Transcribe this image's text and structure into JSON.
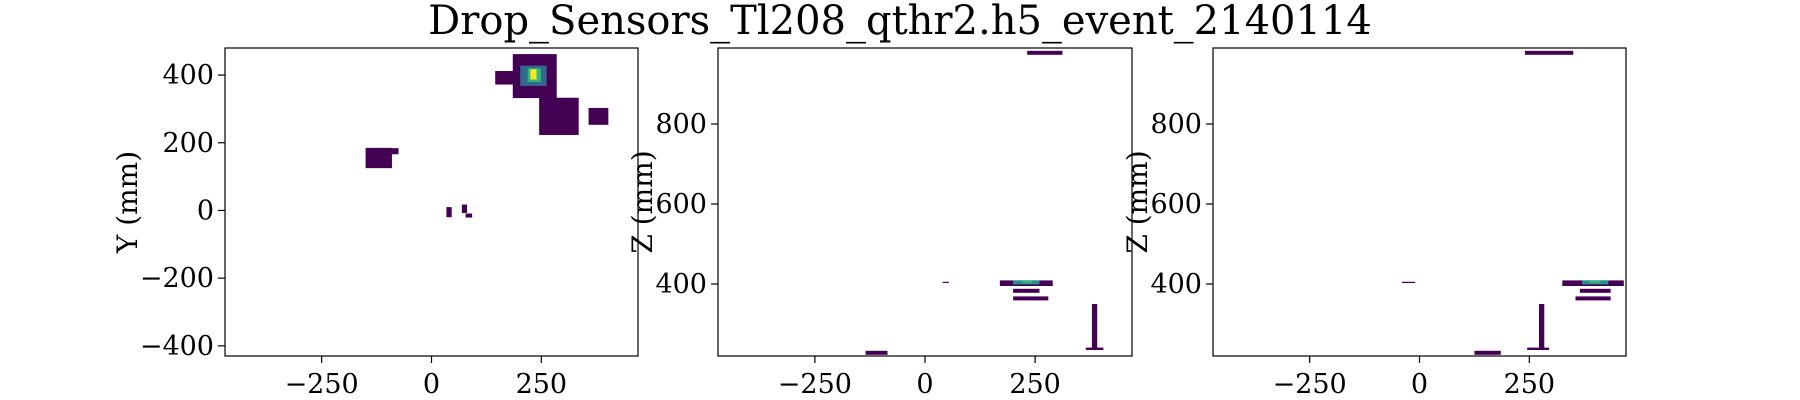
{
  "figure": {
    "title": "Drop_Sensors_Tl208_qthr2.h5_event_2140114"
  },
  "colormap": [
    "#440154",
    "#31688e",
    "#21918c",
    "#35b779",
    "#fde725"
  ],
  "chart_data": [
    {
      "type": "heatmap",
      "panel": "xy",
      "xlabel": "",
      "ylabel": "Y (mm)",
      "xlim": [
        -470,
        470
      ],
      "ylim": [
        -430,
        480
      ],
      "xticks": [
        -250,
        0,
        250
      ],
      "yticks": [
        -400,
        -200,
        0,
        200,
        400
      ],
      "cells": [
        {
          "x": 235,
          "y": 397,
          "w": 100,
          "h": 130,
          "v": 0.05
        },
        {
          "x": 205,
          "y": 392,
          "w": 120,
          "h": 40,
          "v": 0.05
        },
        {
          "x": 232,
          "y": 398,
          "w": 60,
          "h": 60,
          "v": 0.35
        },
        {
          "x": 234,
          "y": 400,
          "w": 30,
          "h": 40,
          "v": 0.65
        },
        {
          "x": 232,
          "y": 402,
          "w": 14,
          "h": 30,
          "v": 1.0
        },
        {
          "x": 290,
          "y": 278,
          "w": 90,
          "h": 110,
          "v": 0.08
        },
        {
          "x": 380,
          "y": 278,
          "w": 45,
          "h": 50,
          "v": 0.05
        },
        {
          "x": -120,
          "y": 155,
          "w": 60,
          "h": 60,
          "v": 0.05
        },
        {
          "x": -90,
          "y": 175,
          "w": 30,
          "h": 18,
          "v": 0.05
        },
        {
          "x": 40,
          "y": -5,
          "w": 12,
          "h": 30,
          "v": 0.05
        },
        {
          "x": 75,
          "y": 5,
          "w": 12,
          "h": 25,
          "v": 0.05
        },
        {
          "x": 85,
          "y": -15,
          "w": 15,
          "h": 12,
          "v": 0.05
        }
      ]
    },
    {
      "type": "heatmap",
      "panel": "xz",
      "xlabel": "",
      "ylabel": "Z (mm)",
      "xlim": [
        -470,
        470
      ],
      "ylim": [
        220,
        990
      ],
      "xticks": [
        -250,
        0,
        250
      ],
      "yticks": [
        400,
        600,
        800
      ],
      "cells": [
        {
          "x": 272,
          "y": 978,
          "w": 80,
          "h": 10,
          "v": 0.05
        },
        {
          "x": 230,
          "y": 402,
          "w": 120,
          "h": 14,
          "v": 0.05
        },
        {
          "x": 230,
          "y": 404,
          "w": 60,
          "h": 10,
          "v": 0.4
        },
        {
          "x": 232,
          "y": 405,
          "w": 20,
          "h": 6,
          "v": 0.85
        },
        {
          "x": 230,
          "y": 383,
          "w": 60,
          "h": 10,
          "v": 0.05
        },
        {
          "x": 240,
          "y": 364,
          "w": 80,
          "h": 10,
          "v": 0.05
        },
        {
          "x": 47,
          "y": 404,
          "w": 14,
          "h": 3,
          "v": 0.05
        },
        {
          "x": 385,
          "y": 295,
          "w": 12,
          "h": 110,
          "v": 0.05
        },
        {
          "x": 385,
          "y": 238,
          "w": 40,
          "h": 6,
          "v": 0.05
        },
        {
          "x": -110,
          "y": 228,
          "w": 50,
          "h": 10,
          "v": 0.05
        }
      ]
    },
    {
      "type": "heatmap",
      "panel": "yz",
      "xlabel": "",
      "ylabel": "Z (mm)",
      "xlim": [
        -470,
        470
      ],
      "ylim": [
        220,
        990
      ],
      "xticks": [
        -250,
        0,
        250
      ],
      "yticks": [
        400,
        600,
        800
      ],
      "cells": [
        {
          "x": 295,
          "y": 978,
          "w": 110,
          "h": 10,
          "v": 0.05
        },
        {
          "x": 395,
          "y": 402,
          "w": 140,
          "h": 14,
          "v": 0.05
        },
        {
          "x": 400,
          "y": 404,
          "w": 60,
          "h": 10,
          "v": 0.4
        },
        {
          "x": 400,
          "y": 405,
          "w": 24,
          "h": 6,
          "v": 0.85
        },
        {
          "x": 400,
          "y": 383,
          "w": 70,
          "h": 10,
          "v": 0.05
        },
        {
          "x": 395,
          "y": 364,
          "w": 80,
          "h": 10,
          "v": 0.05
        },
        {
          "x": -25,
          "y": 404,
          "w": 30,
          "h": 3,
          "v": 0.05
        },
        {
          "x": 278,
          "y": 295,
          "w": 12,
          "h": 110,
          "v": 0.05
        },
        {
          "x": 270,
          "y": 238,
          "w": 50,
          "h": 6,
          "v": 0.05
        },
        {
          "x": 155,
          "y": 228,
          "w": 60,
          "h": 10,
          "v": 0.05
        }
      ]
    }
  ]
}
